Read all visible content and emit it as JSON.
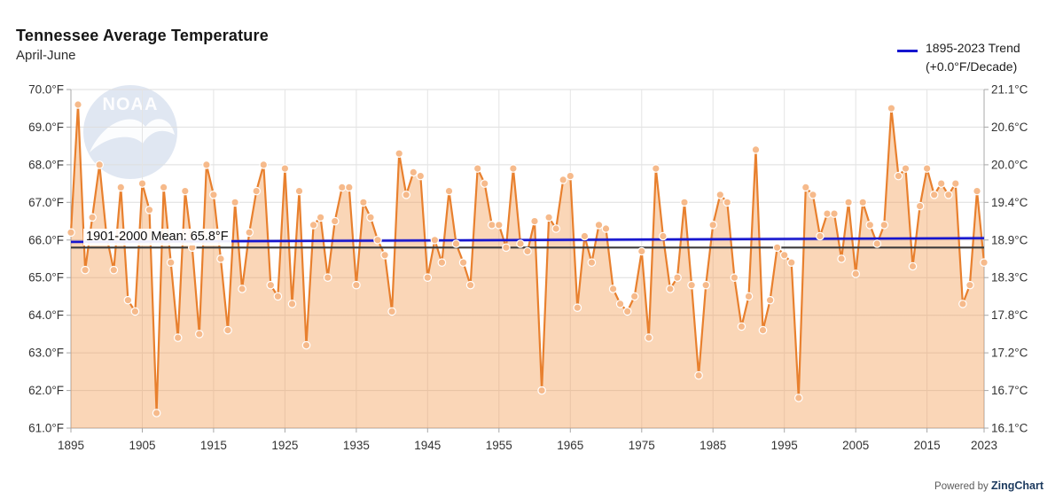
{
  "header": {
    "title": "Tennessee Average Temperature",
    "subtitle": "April-June"
  },
  "legend": {
    "line1": "1895-2023 Trend",
    "line2": "(+0.0°F/Decade)"
  },
  "watermark": {
    "text": "NOAA"
  },
  "mean_line": {
    "label": "1901-2000 Mean: 65.8°F",
    "value_f": 65.8
  },
  "trend_line": {
    "start_f": 65.95,
    "end_f": 66.05,
    "rate_label": "+0.0°F/Decade"
  },
  "footer": {
    "prefix": "Powered by ",
    "brand": "ZingChart"
  },
  "colors": {
    "line": "#E8802E",
    "marker_fill": "#F6BA8B",
    "marker_ring": "#FFFFFF",
    "area": "#F39242",
    "trend": "#1515CF",
    "mean": "#3C3C3C",
    "grid_h": "#DEDEDE",
    "grid_v": "#E4E4E4",
    "axis": "#A8A8A8",
    "watermark_circle": "#C7D3E8",
    "brand": "#1C3A5E"
  },
  "axes": {
    "y_left_labels": [
      "70.0°F",
      "69.0°F",
      "68.0°F",
      "67.0°F",
      "66.0°F",
      "65.0°F",
      "64.0°F",
      "63.0°F",
      "62.0°F",
      "61.0°F"
    ],
    "y_right_labels": [
      "21.1°C",
      "20.6°C",
      "20.0°C",
      "19.4°C",
      "18.9°C",
      "18.3°C",
      "17.8°C",
      "17.2°C",
      "16.7°C",
      "16.1°C"
    ],
    "y_values": [
      70,
      69,
      68,
      67,
      66,
      65,
      64,
      63,
      62,
      61
    ],
    "x_labels": [
      "1895",
      "1905",
      "1915",
      "1925",
      "1935",
      "1945",
      "1955",
      "1965",
      "1975",
      "1985",
      "1995",
      "2005",
      "2015",
      "2023"
    ],
    "x_label_years": [
      1895,
      1905,
      1915,
      1925,
      1935,
      1945,
      1955,
      1965,
      1975,
      1985,
      1995,
      2005,
      2015,
      2023
    ],
    "x_gridline_years": [
      1905,
      1915,
      1925,
      1935,
      1945,
      1955,
      1965,
      1975,
      1985,
      1995,
      2005,
      2015
    ]
  },
  "chart_data": {
    "type": "line",
    "title": "Tennessee Average Temperature",
    "subtitle": "April-June",
    "xlim": [
      1895,
      2023
    ],
    "ylim_f": [
      61,
      70
    ],
    "ylim_c": [
      16.1,
      21.1
    ],
    "grid": true,
    "legend_position": "top-right",
    "ylabel_left_unit": "°F",
    "ylabel_right_unit": "°C",
    "mean_1901_2000_f": 65.8,
    "trend_f_per_decade": 0.0,
    "years": [
      1895,
      1896,
      1897,
      1898,
      1899,
      1900,
      1901,
      1902,
      1903,
      1904,
      1905,
      1906,
      1907,
      1908,
      1909,
      1910,
      1911,
      1912,
      1913,
      1914,
      1915,
      1916,
      1917,
      1918,
      1919,
      1920,
      1921,
      1922,
      1923,
      1924,
      1925,
      1926,
      1927,
      1928,
      1929,
      1930,
      1931,
      1932,
      1933,
      1934,
      1935,
      1936,
      1937,
      1938,
      1939,
      1940,
      1941,
      1942,
      1943,
      1944,
      1945,
      1946,
      1947,
      1948,
      1949,
      1950,
      1951,
      1952,
      1953,
      1954,
      1955,
      1956,
      1957,
      1958,
      1959,
      1960,
      1961,
      1962,
      1963,
      1964,
      1965,
      1966,
      1967,
      1968,
      1969,
      1970,
      1971,
      1972,
      1973,
      1974,
      1975,
      1976,
      1977,
      1978,
      1979,
      1980,
      1981,
      1982,
      1983,
      1984,
      1985,
      1986,
      1987,
      1988,
      1989,
      1990,
      1991,
      1992,
      1993,
      1994,
      1995,
      1996,
      1997,
      1998,
      1999,
      2000,
      2001,
      2002,
      2003,
      2004,
      2005,
      2006,
      2007,
      2008,
      2009,
      2010,
      2011,
      2012,
      2013,
      2014,
      2015,
      2016,
      2017,
      2018,
      2019,
      2020,
      2021,
      2022,
      2023
    ],
    "values_f": [
      66.2,
      69.6,
      65.2,
      66.6,
      68.0,
      66.1,
      65.2,
      67.4,
      64.4,
      64.1,
      67.5,
      66.8,
      61.4,
      67.4,
      65.4,
      63.4,
      67.3,
      65.8,
      63.5,
      68.0,
      67.2,
      65.5,
      63.6,
      67.0,
      64.7,
      66.2,
      67.3,
      68.0,
      64.8,
      64.5,
      67.9,
      64.3,
      67.3,
      63.2,
      66.4,
      66.6,
      65.0,
      66.5,
      67.4,
      67.4,
      64.8,
      67.0,
      66.6,
      66.0,
      65.6,
      64.1,
      68.3,
      67.2,
      67.8,
      67.7,
      65.0,
      66.0,
      65.4,
      67.3,
      65.9,
      65.4,
      64.8,
      67.9,
      67.5,
      66.4,
      66.4,
      65.8,
      67.9,
      65.9,
      65.7,
      66.5,
      62.0,
      66.6,
      66.3,
      67.6,
      67.7,
      64.2,
      66.1,
      65.4,
      66.4,
      66.3,
      64.7,
      64.3,
      64.1,
      64.5,
      65.7,
      63.4,
      67.9,
      66.1,
      64.7,
      65.0,
      67.0,
      64.8,
      62.4,
      64.8,
      66.4,
      67.2,
      67.0,
      65.0,
      63.7,
      64.5,
      68.4,
      63.6,
      64.4,
      65.8,
      65.6,
      65.4,
      61.8,
      67.4,
      67.2,
      66.1,
      66.7,
      66.7,
      65.5,
      67.0,
      65.1,
      67.0,
      66.4,
      65.9,
      66.4,
      69.5,
      67.7,
      67.9,
      65.3,
      66.9,
      67.9,
      67.2,
      67.5,
      67.2,
      67.5,
      64.3,
      64.8,
      67.3,
      65.4
    ]
  }
}
